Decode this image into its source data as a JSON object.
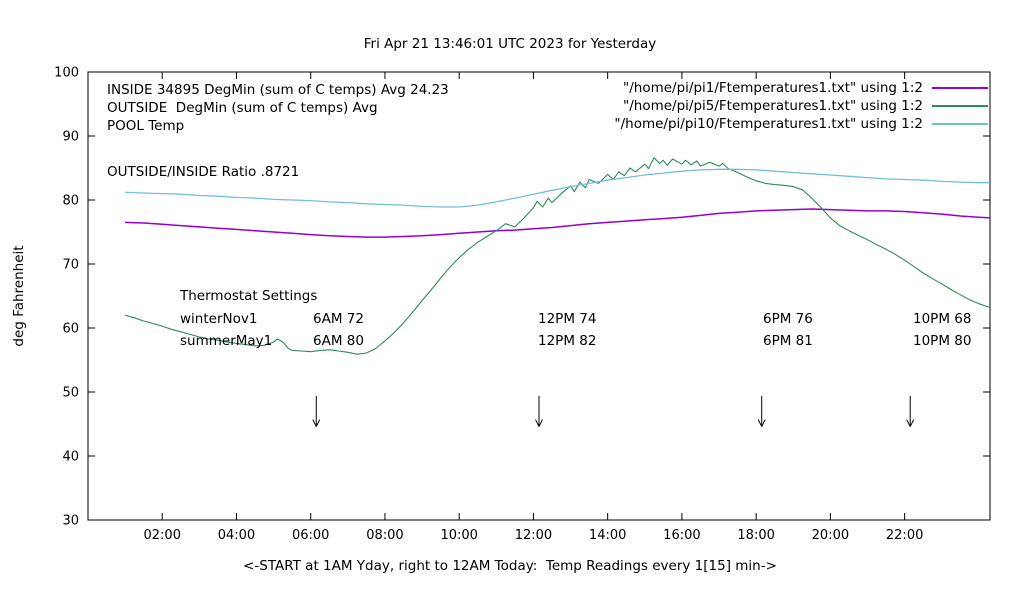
{
  "chart_data": {
    "type": "line",
    "title": "Fri Apr 21 13:46:01 UTC 2023 for Yesterday",
    "xlabel": "<-START at 1AM Yday, right to 12AM Today:  Temp Readings every 1[15] min->",
    "ylabel": "deg Fahrenheit",
    "xlim": [
      0,
      24.3
    ],
    "ylim": [
      30,
      100
    ],
    "grid": false,
    "x_ticks": [
      {
        "value": 2,
        "label": "02:00"
      },
      {
        "value": 4,
        "label": "04:00"
      },
      {
        "value": 6,
        "label": "06:00"
      },
      {
        "value": 8,
        "label": "08:00"
      },
      {
        "value": 10,
        "label": "10:00"
      },
      {
        "value": 12,
        "label": "12:00"
      },
      {
        "value": 14,
        "label": "14:00"
      },
      {
        "value": 16,
        "label": "16:00"
      },
      {
        "value": 18,
        "label": "18:00"
      },
      {
        "value": 20,
        "label": "20:00"
      },
      {
        "value": 22,
        "label": "22:00"
      }
    ],
    "y_ticks": [
      {
        "value": 30,
        "label": "30"
      },
      {
        "value": 40,
        "label": "40"
      },
      {
        "value": 50,
        "label": "50"
      },
      {
        "value": 60,
        "label": "60"
      },
      {
        "value": 70,
        "label": "70"
      },
      {
        "value": 80,
        "label": "80"
      },
      {
        "value": 90,
        "label": "90"
      },
      {
        "value": 100,
        "label": "100"
      }
    ],
    "arrows_x": [
      6.15,
      12.15,
      18.15,
      22.15
    ],
    "arrow_y": {
      "from": 49.4,
      "to": 44.6
    },
    "series": [
      {
        "name": "INSIDE",
        "color": "#9400d3",
        "points": [
          [
            1,
            76.5
          ],
          [
            1.5,
            76.4
          ],
          [
            2,
            76.2
          ],
          [
            2.5,
            76.0
          ],
          [
            3,
            75.8
          ],
          [
            3.5,
            75.6
          ],
          [
            4,
            75.4
          ],
          [
            4.5,
            75.2
          ],
          [
            5,
            75.0
          ],
          [
            5.5,
            74.8
          ],
          [
            6,
            74.6
          ],
          [
            6.5,
            74.4
          ],
          [
            7,
            74.3
          ],
          [
            7.5,
            74.2
          ],
          [
            8,
            74.2
          ],
          [
            8.5,
            74.3
          ],
          [
            9,
            74.4
          ],
          [
            9.5,
            74.6
          ],
          [
            10,
            74.8
          ],
          [
            10.5,
            75.0
          ],
          [
            11,
            75.2
          ],
          [
            11.5,
            75.3
          ],
          [
            12,
            75.5
          ],
          [
            12.5,
            75.7
          ],
          [
            13,
            76.0
          ],
          [
            13.5,
            76.3
          ],
          [
            14,
            76.5
          ],
          [
            14.5,
            76.7
          ],
          [
            15,
            76.9
          ],
          [
            15.5,
            77.1
          ],
          [
            16,
            77.3
          ],
          [
            16.5,
            77.6
          ],
          [
            17,
            77.9
          ],
          [
            17.5,
            78.1
          ],
          [
            18,
            78.3
          ],
          [
            18.5,
            78.4
          ],
          [
            19,
            78.5
          ],
          [
            19.5,
            78.6
          ],
          [
            20,
            78.5
          ],
          [
            20.5,
            78.4
          ],
          [
            21,
            78.3
          ],
          [
            21.5,
            78.3
          ],
          [
            22,
            78.2
          ],
          [
            22.5,
            78.0
          ],
          [
            23,
            77.8
          ],
          [
            23.5,
            77.5
          ],
          [
            24,
            77.3
          ],
          [
            24.3,
            77.2
          ]
        ]
      },
      {
        "name": "OUTSIDE",
        "color": "#2e8b57",
        "points": [
          [
            1,
            62.0
          ],
          [
            1.25,
            61.6
          ],
          [
            1.5,
            61.1
          ],
          [
            1.75,
            60.7
          ],
          [
            2,
            60.3
          ],
          [
            2.25,
            59.8
          ],
          [
            2.5,
            59.4
          ],
          [
            2.75,
            59.0
          ],
          [
            3,
            58.6
          ],
          [
            3.25,
            58.3
          ],
          [
            3.5,
            58.1
          ],
          [
            3.75,
            57.8
          ],
          [
            4,
            57.6
          ],
          [
            4.25,
            57.4
          ],
          [
            4.5,
            57.2
          ],
          [
            4.75,
            57.3
          ],
          [
            5,
            57.8
          ],
          [
            5.1,
            58.3
          ],
          [
            5.25,
            57.8
          ],
          [
            5.4,
            56.8
          ],
          [
            5.5,
            56.5
          ],
          [
            5.75,
            56.4
          ],
          [
            6,
            56.3
          ],
          [
            6.25,
            56.5
          ],
          [
            6.5,
            56.6
          ],
          [
            6.75,
            56.4
          ],
          [
            7,
            56.2
          ],
          [
            7.25,
            55.9
          ],
          [
            7.5,
            56.1
          ],
          [
            7.75,
            56.8
          ],
          [
            8,
            58.0
          ],
          [
            8.25,
            59.3
          ],
          [
            8.5,
            60.8
          ],
          [
            8.75,
            62.5
          ],
          [
            9,
            64.3
          ],
          [
            9.25,
            66.0
          ],
          [
            9.5,
            67.8
          ],
          [
            9.75,
            69.5
          ],
          [
            10,
            71.0
          ],
          [
            10.25,
            72.3
          ],
          [
            10.5,
            73.4
          ],
          [
            10.75,
            74.3
          ],
          [
            11,
            75.2
          ],
          [
            11.25,
            76.3
          ],
          [
            11.5,
            75.8
          ],
          [
            11.75,
            77.2
          ],
          [
            12,
            78.8
          ],
          [
            12.1,
            79.8
          ],
          [
            12.25,
            78.9
          ],
          [
            12.4,
            80.3
          ],
          [
            12.5,
            79.6
          ],
          [
            12.75,
            81.0
          ],
          [
            13,
            82.2
          ],
          [
            13.1,
            81.3
          ],
          [
            13.25,
            82.8
          ],
          [
            13.4,
            81.9
          ],
          [
            13.5,
            83.2
          ],
          [
            13.75,
            82.6
          ],
          [
            14,
            84.0
          ],
          [
            14.15,
            83.2
          ],
          [
            14.3,
            84.4
          ],
          [
            14.45,
            83.8
          ],
          [
            14.6,
            85.0
          ],
          [
            14.75,
            84.4
          ],
          [
            15,
            85.6
          ],
          [
            15.1,
            84.9
          ],
          [
            15.25,
            86.6
          ],
          [
            15.4,
            85.7
          ],
          [
            15.5,
            86.2
          ],
          [
            15.6,
            85.4
          ],
          [
            15.75,
            86.4
          ],
          [
            16,
            85.6
          ],
          [
            16.1,
            86.2
          ],
          [
            16.25,
            85.5
          ],
          [
            16.4,
            86.1
          ],
          [
            16.5,
            85.3
          ],
          [
            16.75,
            85.9
          ],
          [
            17,
            85.3
          ],
          [
            17.1,
            85.7
          ],
          [
            17.25,
            84.9
          ],
          [
            17.5,
            84.3
          ],
          [
            17.75,
            83.6
          ],
          [
            18,
            83.0
          ],
          [
            18.25,
            82.6
          ],
          [
            18.5,
            82.4
          ],
          [
            18.75,
            82.3
          ],
          [
            19,
            82.1
          ],
          [
            19.25,
            81.6
          ],
          [
            19.5,
            80.3
          ],
          [
            19.75,
            78.8
          ],
          [
            20,
            77.2
          ],
          [
            20.25,
            76.0
          ],
          [
            20.5,
            75.2
          ],
          [
            20.75,
            74.5
          ],
          [
            21,
            73.8
          ],
          [
            21.25,
            73.0
          ],
          [
            21.5,
            72.3
          ],
          [
            21.75,
            71.5
          ],
          [
            22,
            70.6
          ],
          [
            22.25,
            69.6
          ],
          [
            22.5,
            68.6
          ],
          [
            22.75,
            67.7
          ],
          [
            23,
            66.9
          ],
          [
            23.25,
            66.0
          ],
          [
            23.5,
            65.2
          ],
          [
            23.75,
            64.4
          ],
          [
            24,
            63.8
          ],
          [
            24.3,
            63.2
          ]
        ]
      },
      {
        "name": "POOL",
        "color": "#72bfd4",
        "points": [
          [
            1,
            81.2
          ],
          [
            1.5,
            81.1
          ],
          [
            2,
            81.0
          ],
          [
            2.5,
            80.9
          ],
          [
            3,
            80.7
          ],
          [
            3.5,
            80.6
          ],
          [
            4,
            80.4
          ],
          [
            4.5,
            80.3
          ],
          [
            5,
            80.1
          ],
          [
            5.5,
            80.0
          ],
          [
            6,
            79.9
          ],
          [
            6.5,
            79.7
          ],
          [
            7,
            79.6
          ],
          [
            7.5,
            79.4
          ],
          [
            8,
            79.3
          ],
          [
            8.5,
            79.2
          ],
          [
            9,
            79.0
          ],
          [
            9.5,
            78.9
          ],
          [
            10,
            78.9
          ],
          [
            10.5,
            79.2
          ],
          [
            11,
            79.7
          ],
          [
            11.5,
            80.3
          ],
          [
            12,
            80.9
          ],
          [
            12.5,
            81.5
          ],
          [
            13,
            82.1
          ],
          [
            13.5,
            82.6
          ],
          [
            14,
            83.1
          ],
          [
            14.5,
            83.5
          ],
          [
            15,
            83.9
          ],
          [
            15.5,
            84.2
          ],
          [
            16,
            84.5
          ],
          [
            16.5,
            84.7
          ],
          [
            17,
            84.8
          ],
          [
            17.5,
            84.8
          ],
          [
            18,
            84.7
          ],
          [
            18.5,
            84.5
          ],
          [
            19,
            84.3
          ],
          [
            19.5,
            84.1
          ],
          [
            20,
            83.9
          ],
          [
            20.5,
            83.7
          ],
          [
            21,
            83.5
          ],
          [
            21.5,
            83.3
          ],
          [
            22,
            83.2
          ],
          [
            22.5,
            83.1
          ],
          [
            23,
            82.9
          ],
          [
            23.5,
            82.8
          ],
          [
            24,
            82.7
          ],
          [
            24.3,
            82.7
          ]
        ]
      }
    ]
  },
  "annotations": {
    "inside_stats": "INSIDE 34895 DegMin (sum of C temps) Avg 24.23",
    "outside_stats": "OUTSIDE  DegMin (sum of C temps) Avg",
    "pool_label": "POOL Temp",
    "ratio": "OUTSIDE/INSIDE Ratio .8721"
  },
  "legend": {
    "entries": [
      {
        "label": "\"/home/pi/pi1/Ftemperatures1.txt\" using 1:2",
        "series": "INSIDE"
      },
      {
        "label": "\"/home/pi/pi5/Ftemperatures1.txt\" using 1:2",
        "series": "OUTSIDE"
      },
      {
        "label": "\"/home/pi/pi10/Ftemperatures1.txt\" using 1:2",
        "series": "POOL"
      }
    ]
  },
  "thermostat": {
    "heading": "Thermostat Settings",
    "rows": [
      {
        "cells": [
          "winterNov1",
          "6AM 72",
          "12PM 74",
          "6PM 76",
          "10PM 68"
        ]
      },
      {
        "cells": [
          "summerMay1",
          "6AM 80",
          "12PM 82",
          "6PM 81",
          "10PM 80"
        ]
      }
    ]
  }
}
